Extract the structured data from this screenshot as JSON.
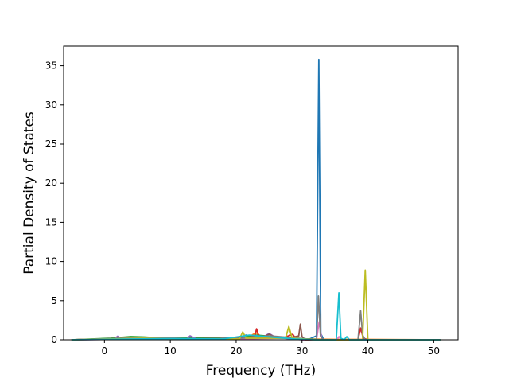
{
  "chart_data": {
    "type": "line",
    "title": "",
    "xlabel": "Frequency (THz)",
    "ylabel": "Partial Density of States",
    "xlim": [
      -6.2,
      53.7
    ],
    "ylim": [
      0,
      37.5
    ],
    "xticks": [
      0,
      10,
      20,
      30,
      40,
      50
    ],
    "yticks": [
      0,
      5,
      10,
      15,
      20,
      25,
      30,
      35
    ],
    "grid": false,
    "legend": "none",
    "series": [
      {
        "color": "#1f77b4",
        "x": [
          -5,
          1,
          2,
          3,
          5,
          8,
          12,
          16,
          20,
          21.5,
          22.5,
          24,
          26,
          28,
          31,
          32.2,
          32.55,
          32.85,
          33.3,
          36,
          40,
          45,
          51
        ],
        "y": [
          0,
          0.05,
          0.2,
          0.1,
          0.15,
          0.1,
          0.2,
          0.15,
          0.1,
          0.6,
          0.3,
          0.5,
          0.4,
          0.2,
          0.05,
          0.5,
          35.8,
          0.8,
          0,
          0,
          0,
          0,
          0
        ]
      },
      {
        "color": "#ff7f0e",
        "x": [
          -5,
          2,
          6,
          10,
          15,
          20,
          22,
          23,
          24,
          27,
          30,
          35,
          40,
          45,
          51
        ],
        "y": [
          0,
          0.1,
          0.2,
          0.15,
          0.1,
          0.1,
          0.4,
          0.9,
          0.3,
          0.2,
          0.1,
          0.05,
          0.05,
          0.02,
          0
        ]
      },
      {
        "color": "#2ca02c",
        "x": [
          -5,
          1,
          4,
          6,
          9,
          13,
          18,
          21,
          23,
          26,
          29,
          33,
          51
        ],
        "y": [
          0,
          0.2,
          0.4,
          0.35,
          0.2,
          0.3,
          0.2,
          0.3,
          0.6,
          0.4,
          0.2,
          0,
          0
        ]
      },
      {
        "color": "#d62728",
        "x": [
          -5,
          3,
          7,
          11,
          16,
          21,
          22.8,
          23.1,
          23.5,
          27,
          28.6,
          29,
          30,
          38.5,
          38.9,
          39.3,
          40,
          51
        ],
        "y": [
          0,
          0.15,
          0.2,
          0.1,
          0.15,
          0.2,
          0.4,
          1.4,
          0.3,
          0.2,
          0.7,
          0.2,
          0,
          0,
          1.5,
          0.2,
          0,
          0
        ]
      },
      {
        "color": "#9467bd",
        "x": [
          -5,
          1.5,
          2,
          2.5,
          6,
          12.5,
          13,
          14,
          19,
          24,
          25,
          26,
          30,
          51
        ],
        "y": [
          0,
          0.1,
          0.45,
          0.1,
          0.3,
          0.1,
          0.5,
          0.1,
          0.2,
          0.3,
          0.8,
          0.3,
          0,
          0
        ]
      },
      {
        "color": "#8c564b",
        "x": [
          -5,
          4,
          9,
          15,
          20,
          24,
          25,
          26,
          28.5,
          29.5,
          29.75,
          30,
          30.5,
          51
        ],
        "y": [
          0,
          0.2,
          0.15,
          0.1,
          0.2,
          0.3,
          0.7,
          0.3,
          0.3,
          0.5,
          2.0,
          0.4,
          0,
          0
        ]
      },
      {
        "color": "#e377c2",
        "x": [
          -5,
          5,
          10,
          20,
          27,
          32.2,
          32.6,
          33,
          35.3,
          35.6,
          36,
          51
        ],
        "y": [
          0,
          0.1,
          0.1,
          0.1,
          0.2,
          0,
          2.3,
          0,
          0,
          0.4,
          0,
          0
        ]
      },
      {
        "color": "#7f7f7f",
        "x": [
          -5,
          3,
          8,
          14,
          21,
          25,
          28,
          32.2,
          32.5,
          32.8,
          33.2,
          38.5,
          38.9,
          39.2,
          39.6,
          51
        ],
        "y": [
          0,
          0.2,
          0.3,
          0.1,
          0.2,
          0.5,
          0.3,
          0,
          5.6,
          0.5,
          0,
          0,
          3.7,
          0.6,
          0,
          0
        ]
      },
      {
        "color": "#bcbd22",
        "x": [
          -5,
          6,
          13,
          20.5,
          21,
          21.5,
          27.5,
          28,
          28.5,
          32,
          39.2,
          39.6,
          40,
          51
        ],
        "y": [
          0,
          0.2,
          0.1,
          0.1,
          1.0,
          0.2,
          0.2,
          1.7,
          0.2,
          0,
          0,
          8.9,
          0,
          0
        ]
      },
      {
        "color": "#17becf",
        "x": [
          -5,
          4,
          10,
          18,
          22,
          26,
          29,
          32,
          35.2,
          35.6,
          35.9,
          36.4,
          36.8,
          37.2,
          51
        ],
        "y": [
          0,
          0.1,
          0.15,
          0.1,
          0.6,
          0.3,
          0.1,
          0,
          0,
          6.0,
          0.2,
          0,
          0.4,
          0,
          0
        ]
      }
    ]
  }
}
